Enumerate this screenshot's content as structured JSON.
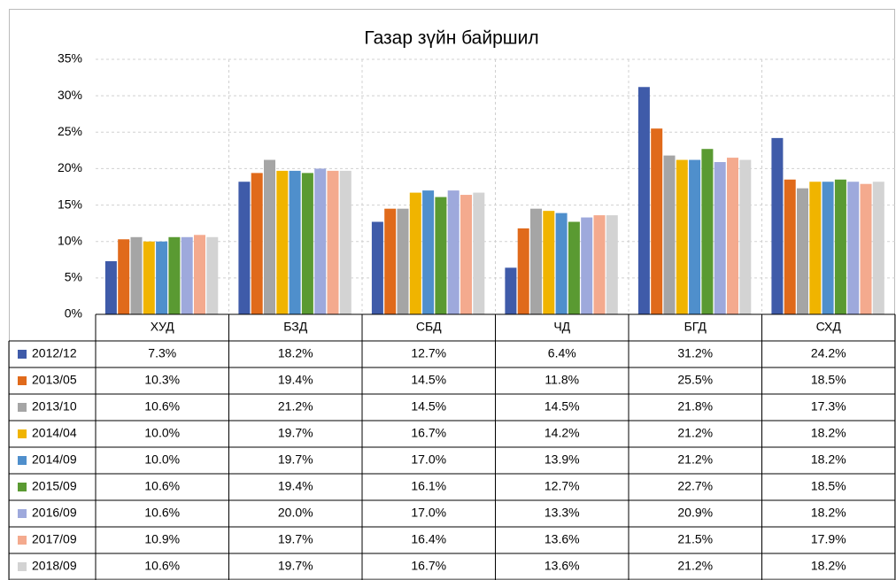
{
  "chart_data": {
    "type": "bar",
    "title": "Газар зүйн байршил",
    "categories": [
      "ХУД",
      "БЗД",
      "СБД",
      "ЧД",
      "БГД",
      "СХД"
    ],
    "ylim": [
      0,
      35
    ],
    "yticks": [
      {
        "value": 0,
        "label": "0%"
      },
      {
        "value": 5,
        "label": "5%"
      },
      {
        "value": 10,
        "label": "10%"
      },
      {
        "value": 15,
        "label": "15%"
      },
      {
        "value": 20,
        "label": "20%"
      },
      {
        "value": 25,
        "label": "25%"
      },
      {
        "value": 30,
        "label": "30%"
      },
      {
        "value": 35,
        "label": "35%"
      }
    ],
    "grid": true,
    "series": [
      {
        "name": "2012/12",
        "color": "#3f5ba9",
        "values": [
          7.3,
          18.2,
          12.7,
          6.4,
          31.2,
          24.2
        ],
        "value_labels": [
          "7.3%",
          "18.2%",
          "12.7%",
          "6.4%",
          "31.2%",
          "24.2%"
        ]
      },
      {
        "name": "2013/05",
        "color": "#e06a1b",
        "values": [
          10.3,
          19.4,
          14.5,
          11.8,
          25.5,
          18.5
        ],
        "value_labels": [
          "10.3%",
          "19.4%",
          "14.5%",
          "11.8%",
          "25.5%",
          "18.5%"
        ]
      },
      {
        "name": "2013/10",
        "color": "#a5a5a5",
        "values": [
          10.6,
          21.2,
          14.5,
          14.5,
          21.8,
          17.3
        ],
        "value_labels": [
          "10.6%",
          "21.2%",
          "14.5%",
          "14.5%",
          "21.8%",
          "17.3%"
        ]
      },
      {
        "name": "2014/04",
        "color": "#f0b400",
        "values": [
          10.0,
          19.7,
          16.7,
          14.2,
          21.2,
          18.2
        ],
        "value_labels": [
          "10.0%",
          "19.7%",
          "16.7%",
          "14.2%",
          "21.2%",
          "18.2%"
        ]
      },
      {
        "name": "2014/09",
        "color": "#4f8fcc",
        "values": [
          10.0,
          19.7,
          17.0,
          13.9,
          21.2,
          18.2
        ],
        "value_labels": [
          "10.0%",
          "19.7%",
          "17.0%",
          "13.9%",
          "21.2%",
          "18.2%"
        ]
      },
      {
        "name": "2015/09",
        "color": "#5a9a32",
        "values": [
          10.6,
          19.4,
          16.1,
          12.7,
          22.7,
          18.5
        ],
        "value_labels": [
          "10.6%",
          "19.4%",
          "16.1%",
          "12.7%",
          "22.7%",
          "18.5%"
        ]
      },
      {
        "name": "2016/09",
        "color": "#9ea9dc",
        "values": [
          10.6,
          20.0,
          17.0,
          13.3,
          20.9,
          18.2
        ],
        "value_labels": [
          "10.6%",
          "20.0%",
          "17.0%",
          "13.3%",
          "20.9%",
          "18.2%"
        ]
      },
      {
        "name": "2017/09",
        "color": "#f4aa8e",
        "values": [
          10.9,
          19.7,
          16.4,
          13.6,
          21.5,
          17.9
        ],
        "value_labels": [
          "10.9%",
          "19.7%",
          "16.4%",
          "13.6%",
          "21.5%",
          "17.9%"
        ]
      },
      {
        "name": "2018/09",
        "color": "#d3d3d3",
        "values": [
          10.6,
          19.7,
          16.7,
          13.6,
          21.2,
          18.2
        ],
        "value_labels": [
          "10.6%",
          "19.7%",
          "16.7%",
          "13.6%",
          "21.2%",
          "18.2%"
        ]
      }
    ]
  }
}
